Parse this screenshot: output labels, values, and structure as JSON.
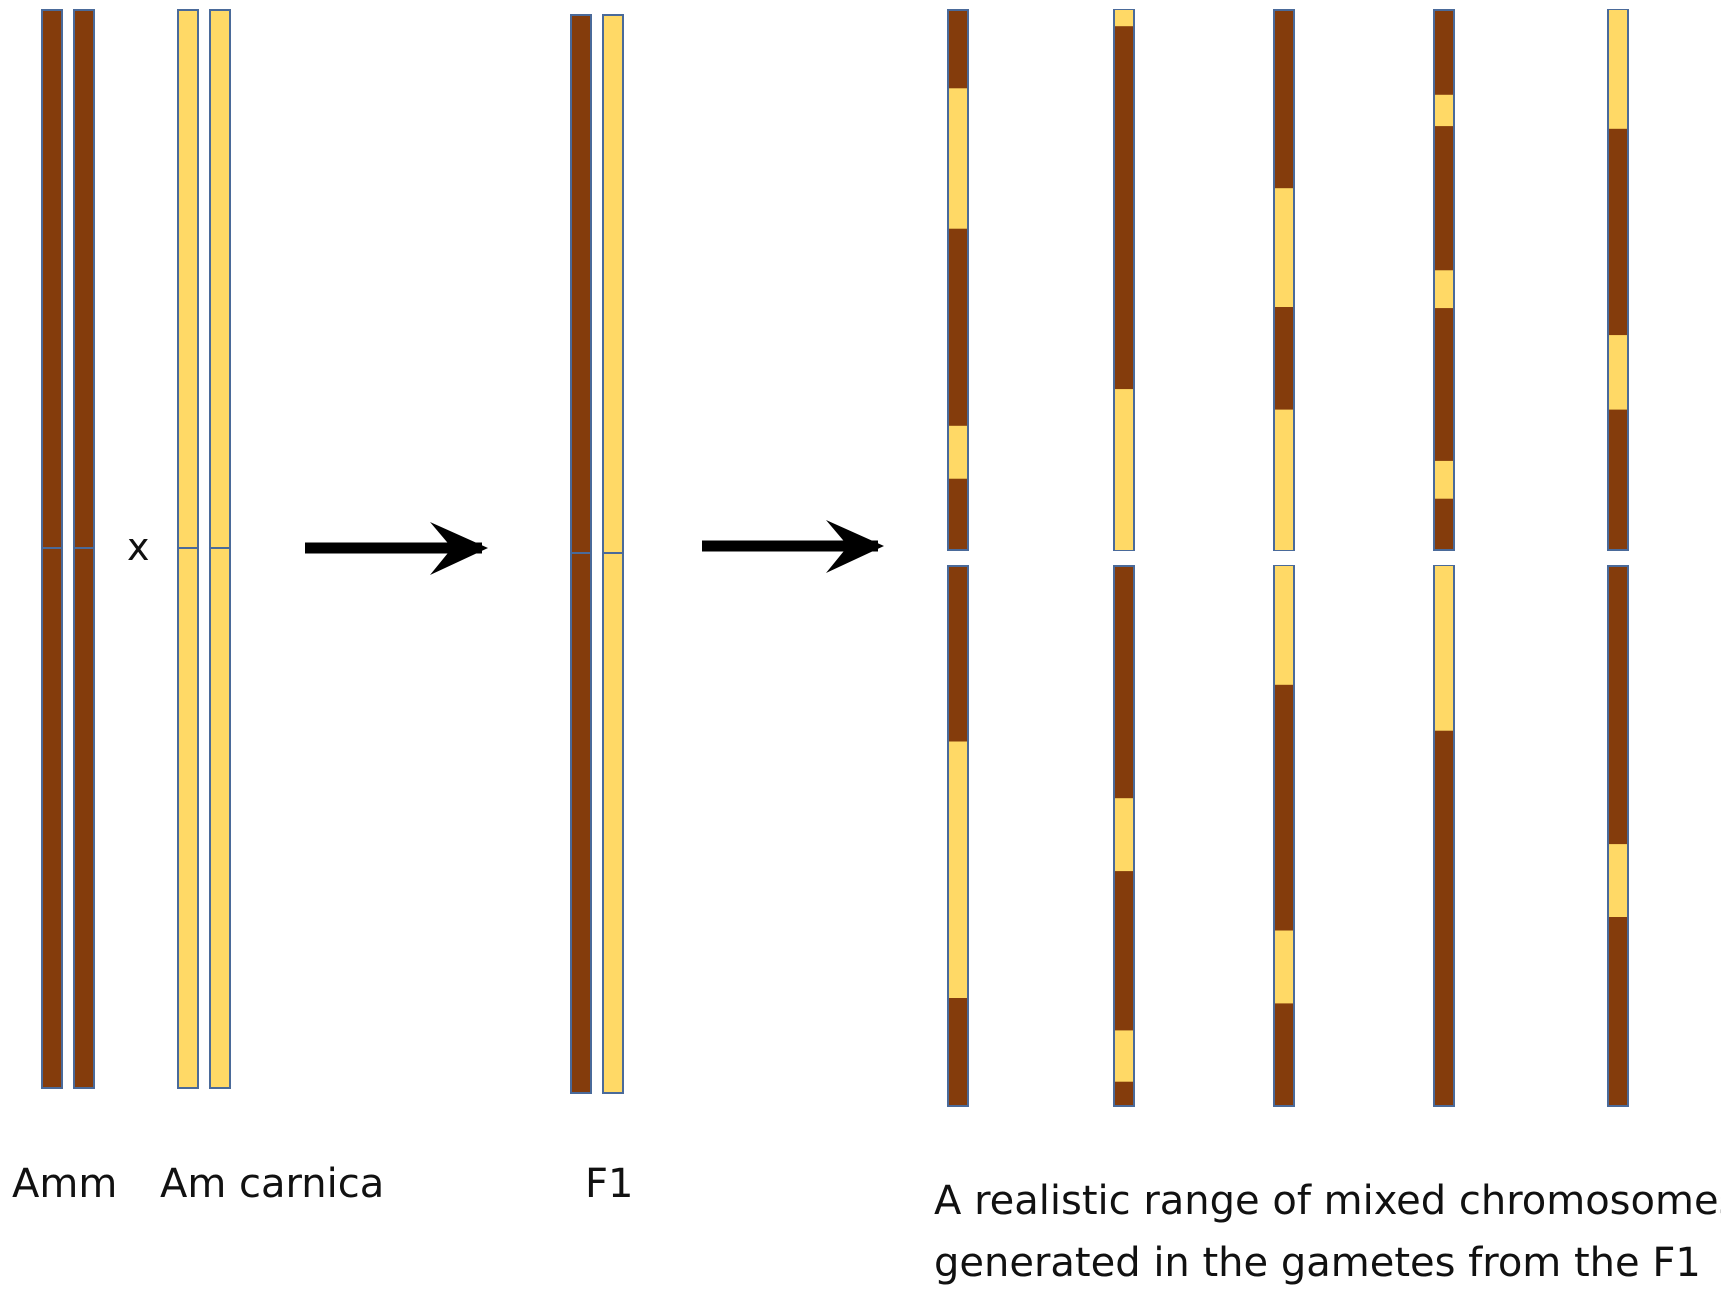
{
  "labels": {
    "amm": "Amm",
    "carnica": "Am carnica",
    "f1": "F1",
    "range_line1": "A realistic range of mixed chromosomes",
    "range_line2": "generated in the gametes from the F1",
    "cross": "x"
  },
  "colors": {
    "amm": "#843c0c",
    "carnica": "#ffd966",
    "outline": "#4a6a9a",
    "arrow": "#000000"
  },
  "parental_chromosomes": [
    {
      "name": "amm-1",
      "origin": "amm"
    },
    {
      "name": "amm-2",
      "origin": "amm"
    },
    {
      "name": "carnica-1",
      "origin": "carnica"
    },
    {
      "name": "carnica-2",
      "origin": "carnica"
    }
  ],
  "f1_chromosomes": [
    {
      "name": "f1-amm",
      "origin": "amm"
    },
    {
      "name": "f1-carnica",
      "origin": "carnica"
    }
  ],
  "gamete_chromosomes": [
    {
      "name": "gamete-1",
      "top_carnica_segments": [
        [
          0.145,
          0.405
        ],
        [
          0.77,
          0.868
        ]
      ],
      "bottom_carnica_segments": [
        [
          0.325,
          0.8
        ]
      ]
    },
    {
      "name": "gamete-2",
      "top_carnica_segments": [
        [
          0.0,
          0.03
        ],
        [
          0.702,
          1.0
        ]
      ],
      "bottom_carnica_segments": [
        [
          0.43,
          0.565
        ],
        [
          0.86,
          0.955
        ]
      ]
    },
    {
      "name": "gamete-3",
      "top_carnica_segments": [
        [
          0.33,
          0.55
        ],
        [
          0.74,
          1.0
        ]
      ],
      "bottom_carnica_segments": [
        [
          0.0,
          0.22
        ],
        [
          0.675,
          0.81
        ]
      ]
    },
    {
      "name": "gamete-4",
      "top_carnica_segments": [
        [
          0.157,
          0.215
        ],
        [
          0.482,
          0.552
        ],
        [
          0.835,
          0.905
        ]
      ],
      "bottom_carnica_segments": [
        [
          0.0,
          0.305
        ]
      ]
    },
    {
      "name": "gamete-5",
      "top_carnica_segments": [
        [
          0.0,
          0.22
        ],
        [
          0.602,
          0.74
        ]
      ],
      "bottom_carnica_segments": [
        [
          0.515,
          0.65
        ]
      ]
    }
  ]
}
